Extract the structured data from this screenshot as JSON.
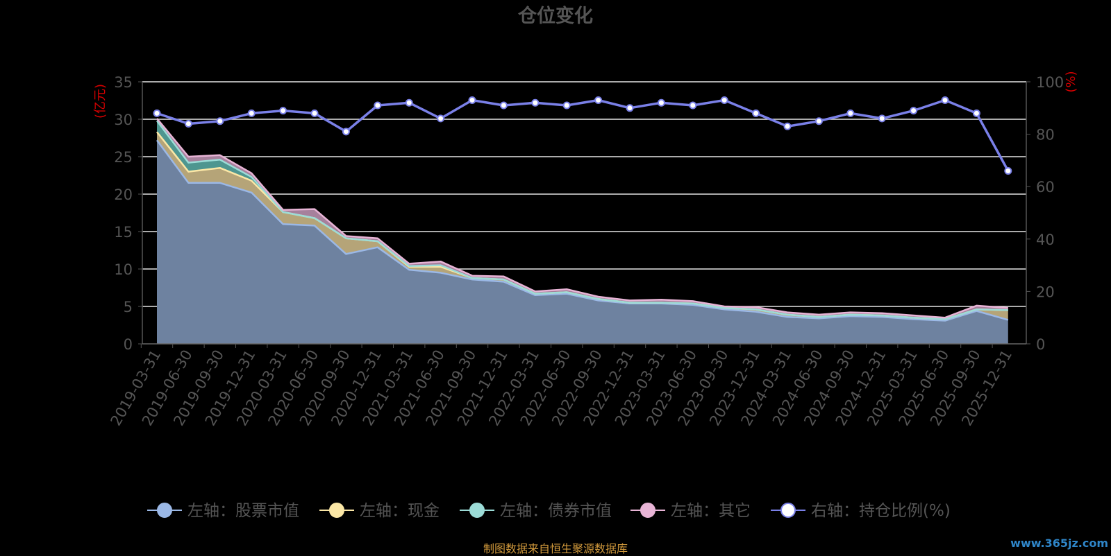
{
  "chart_data": {
    "type": "area",
    "title": "仓位变化",
    "left_axis_unit": "(亿元)",
    "right_axis_unit": "(%)",
    "ylim_left": [
      0,
      35
    ],
    "ylim_right": [
      0,
      100
    ],
    "yticks_left": [
      "0",
      "5",
      "10",
      "15",
      "20",
      "25",
      "30",
      "35"
    ],
    "yticks_right": [
      "0",
      "20",
      "40",
      "60",
      "80",
      "100"
    ],
    "grid": true,
    "legend_position": "bottom",
    "categories": [
      "2019-03-31",
      "2019-06-30",
      "2019-09-30",
      "2019-12-31",
      "2020-03-31",
      "2020-06-30",
      "2020-09-30",
      "2020-12-31",
      "2021-03-31",
      "2021-06-30",
      "2021-09-30",
      "2021-12-31",
      "2022-03-31",
      "2022-06-30",
      "2022-09-30",
      "2022-12-31",
      "2023-03-31",
      "2023-06-30",
      "2023-09-30",
      "2023-12-31",
      "2024-03-31",
      "2024-06-30",
      "2024-09-30",
      "2024-12-31",
      "2025-03-31",
      "2025-06-30",
      "2025-09-30",
      "2025-12-31"
    ],
    "series": [
      {
        "name": "左轴：股票市值",
        "axis": "left",
        "color": "#9bb8e6",
        "fill": "#6e82a0",
        "values": [
          27.2,
          21.5,
          21.5,
          20.2,
          16.0,
          15.8,
          12.0,
          12.9,
          9.9,
          9.5,
          8.6,
          8.3,
          6.5,
          6.7,
          5.8,
          5.4,
          5.4,
          5.2,
          4.6,
          4.3,
          3.6,
          3.4,
          3.7,
          3.6,
          3.3,
          3.1,
          4.4,
          3.2
        ]
      },
      {
        "name": "左轴：现金",
        "axis": "left",
        "color": "#fbe7a6",
        "fill": "#b5a478",
        "values": [
          1.1,
          1.5,
          2.0,
          1.6,
          1.6,
          1.0,
          2.1,
          0.8,
          0.4,
          0.8,
          0.2,
          0.3,
          0.2,
          0.2,
          0.2,
          0.1,
          0.1,
          0.2,
          0.2,
          0.3,
          0.3,
          0.2,
          0.2,
          0.2,
          0.2,
          0.2,
          0.2,
          1.3
        ]
      },
      {
        "name": "左轴：债券市值",
        "axis": "left",
        "color": "#9cdcd7",
        "fill": "#4e9690",
        "values": [
          1.5,
          1.2,
          1.1,
          0.5,
          0.0,
          0.0,
          0.0,
          0.0,
          0.1,
          0.2,
          0.0,
          0.0,
          0.0,
          0.0,
          0.0,
          0.0,
          0.0,
          0.0,
          0.0,
          0.0,
          0.0,
          0.0,
          0.0,
          0.0,
          0.0,
          0.0,
          0.0,
          0.0
        ]
      },
      {
        "name": "左轴：其它",
        "axis": "left",
        "color": "#e8b4d6",
        "fill": "#a6809c",
        "values": [
          0.3,
          0.8,
          0.6,
          0.5,
          0.3,
          1.2,
          0.3,
          0.4,
          0.3,
          0.5,
          0.3,
          0.4,
          0.3,
          0.4,
          0.3,
          0.3,
          0.4,
          0.3,
          0.2,
          0.3,
          0.3,
          0.3,
          0.3,
          0.3,
          0.3,
          0.2,
          0.5,
          0.3
        ]
      },
      {
        "name": "右轴：持仓比例(%)",
        "axis": "right",
        "color": "#7a80e8",
        "values": [
          88,
          84,
          85,
          88,
          89,
          88,
          81,
          91,
          92,
          86,
          93,
          91,
          92,
          91,
          93,
          90,
          92,
          91,
          93,
          88,
          83,
          85,
          88,
          86,
          89,
          93,
          88,
          66
        ]
      }
    ]
  },
  "source_text": "制图数据来自恒生聚源数据库",
  "watermark_text": "www.365jz.com"
}
